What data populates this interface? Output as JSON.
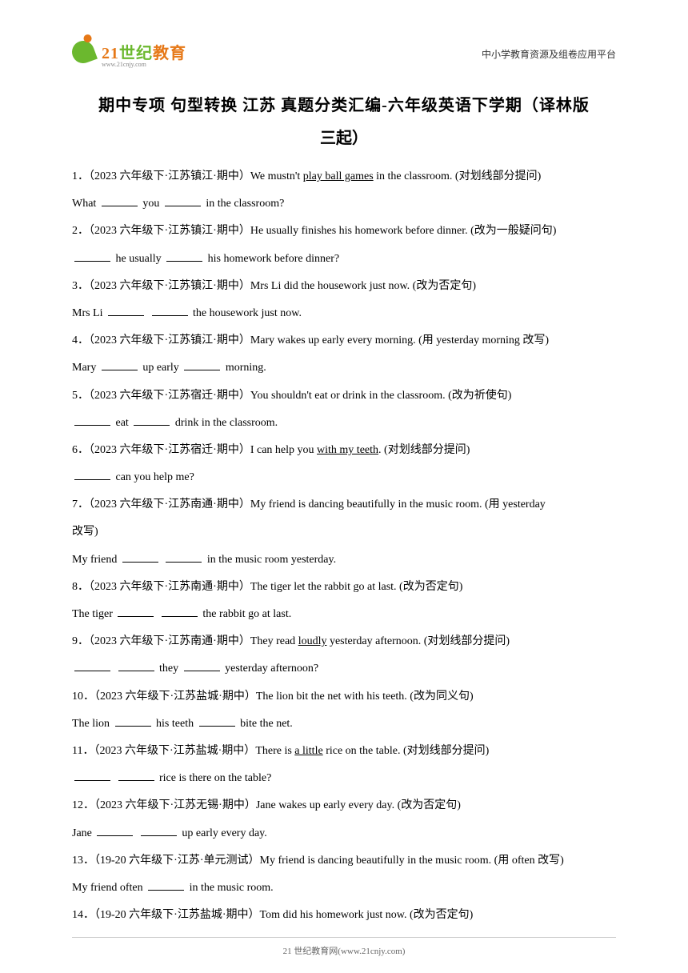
{
  "header": {
    "logo_zh_part1": "21",
    "logo_zh_part2": "世纪",
    "logo_zh_part3": "教育",
    "logo_url": "www.21cnjy.com",
    "right_text": "中小学教育资源及组卷应用平台"
  },
  "title": "期中专项 句型转换 江苏 真题分类汇编-六年级英语下学期（译林版",
  "subtitle": "三起）",
  "questions": [
    {
      "num": "1．",
      "meta": "（2023 六年级下·江苏镇江·期中）",
      "text_before": "We mustn't ",
      "underlined": "play ball games",
      "text_after": " in the classroom. (对划线部分提问)",
      "answer": "What ______ you ______ in the classroom?"
    },
    {
      "num": "2．",
      "meta": "（2023 六年级下·江苏镇江·期中）",
      "text": "He usually finishes his homework before dinner. (改为一般疑问句)",
      "answer": "______ he usually ______ his homework before dinner?"
    },
    {
      "num": "3．",
      "meta": "（2023 六年级下·江苏镇江·期中）",
      "text": "Mrs Li did the housework just now. (改为否定句)",
      "answer": "Mrs Li ______ ______ the housework just now."
    },
    {
      "num": "4．",
      "meta": "（2023 六年级下·江苏镇江·期中）",
      "text": "Mary wakes up early every morning. (用 yesterday morning 改写)",
      "answer": "Mary ______ up early ______ morning."
    },
    {
      "num": "5．",
      "meta": "（2023 六年级下·江苏宿迁·期中）",
      "text": "You shouldn't eat or drink in the classroom. (改为祈使句)",
      "answer": "______ eat ______ drink in the classroom."
    },
    {
      "num": "6．",
      "meta": "（2023 六年级下·江苏宿迁·期中）",
      "text_before": "I can help you ",
      "underlined": "with my teeth",
      "text_after": ". (对划线部分提问)",
      "answer": "______ can you help me?"
    },
    {
      "num": "7．",
      "meta": "（2023 六年级下·江苏南通·期中）",
      "text": "My friend is dancing beautifully in the music room. (用 yesterday",
      "text2": "改写)",
      "answer": "My friend ______ ______ in the music room yesterday."
    },
    {
      "num": "8．",
      "meta": "（2023 六年级下·江苏南通·期中）",
      "text": "The tiger let the rabbit go at last. (改为否定句)",
      "answer": "The tiger ______ ______ the rabbit go at last."
    },
    {
      "num": "9．",
      "meta": "（2023 六年级下·江苏南通·期中）",
      "text_before": "They read ",
      "underlined": "loudly",
      "text_after": " yesterday afternoon. (对划线部分提问)",
      "answer": "______ ______ they ______ yesterday afternoon?"
    },
    {
      "num": "10．",
      "meta": "（2023 六年级下·江苏盐城·期中）",
      "text": "The lion bit the net with his teeth. (改为同义句)",
      "answer": "The lion ______ his teeth ______ bite the net."
    },
    {
      "num": "11．",
      "meta": "（2023 六年级下·江苏盐城·期中）",
      "text_before": "There is ",
      "underlined": "a little",
      "text_after": " rice on the table. (对划线部分提问)",
      "answer": "______ ______ rice is there on the table?"
    },
    {
      "num": "12．",
      "meta": "（2023 六年级下·江苏无锡·期中）",
      "text": "Jane wakes up early every day. (改为否定句)",
      "answer": "Jane ______ ______ up early every day."
    },
    {
      "num": "13．",
      "meta": "（19-20 六年级下·江苏·单元测试）",
      "text": "My friend is dancing beautifully in the music room. (用 often 改写)",
      "answer": "My friend often ______ in the music room."
    },
    {
      "num": "14．",
      "meta": "（19-20 六年级下·江苏盐城·期中）",
      "text": "Tom did his homework just now. (改为否定句)"
    }
  ],
  "footer": "21 世纪教育网(www.21cnjy.com)",
  "colors": {
    "green": "#6bb82e",
    "orange": "#e67817",
    "text": "#000000",
    "background": "#ffffff"
  }
}
